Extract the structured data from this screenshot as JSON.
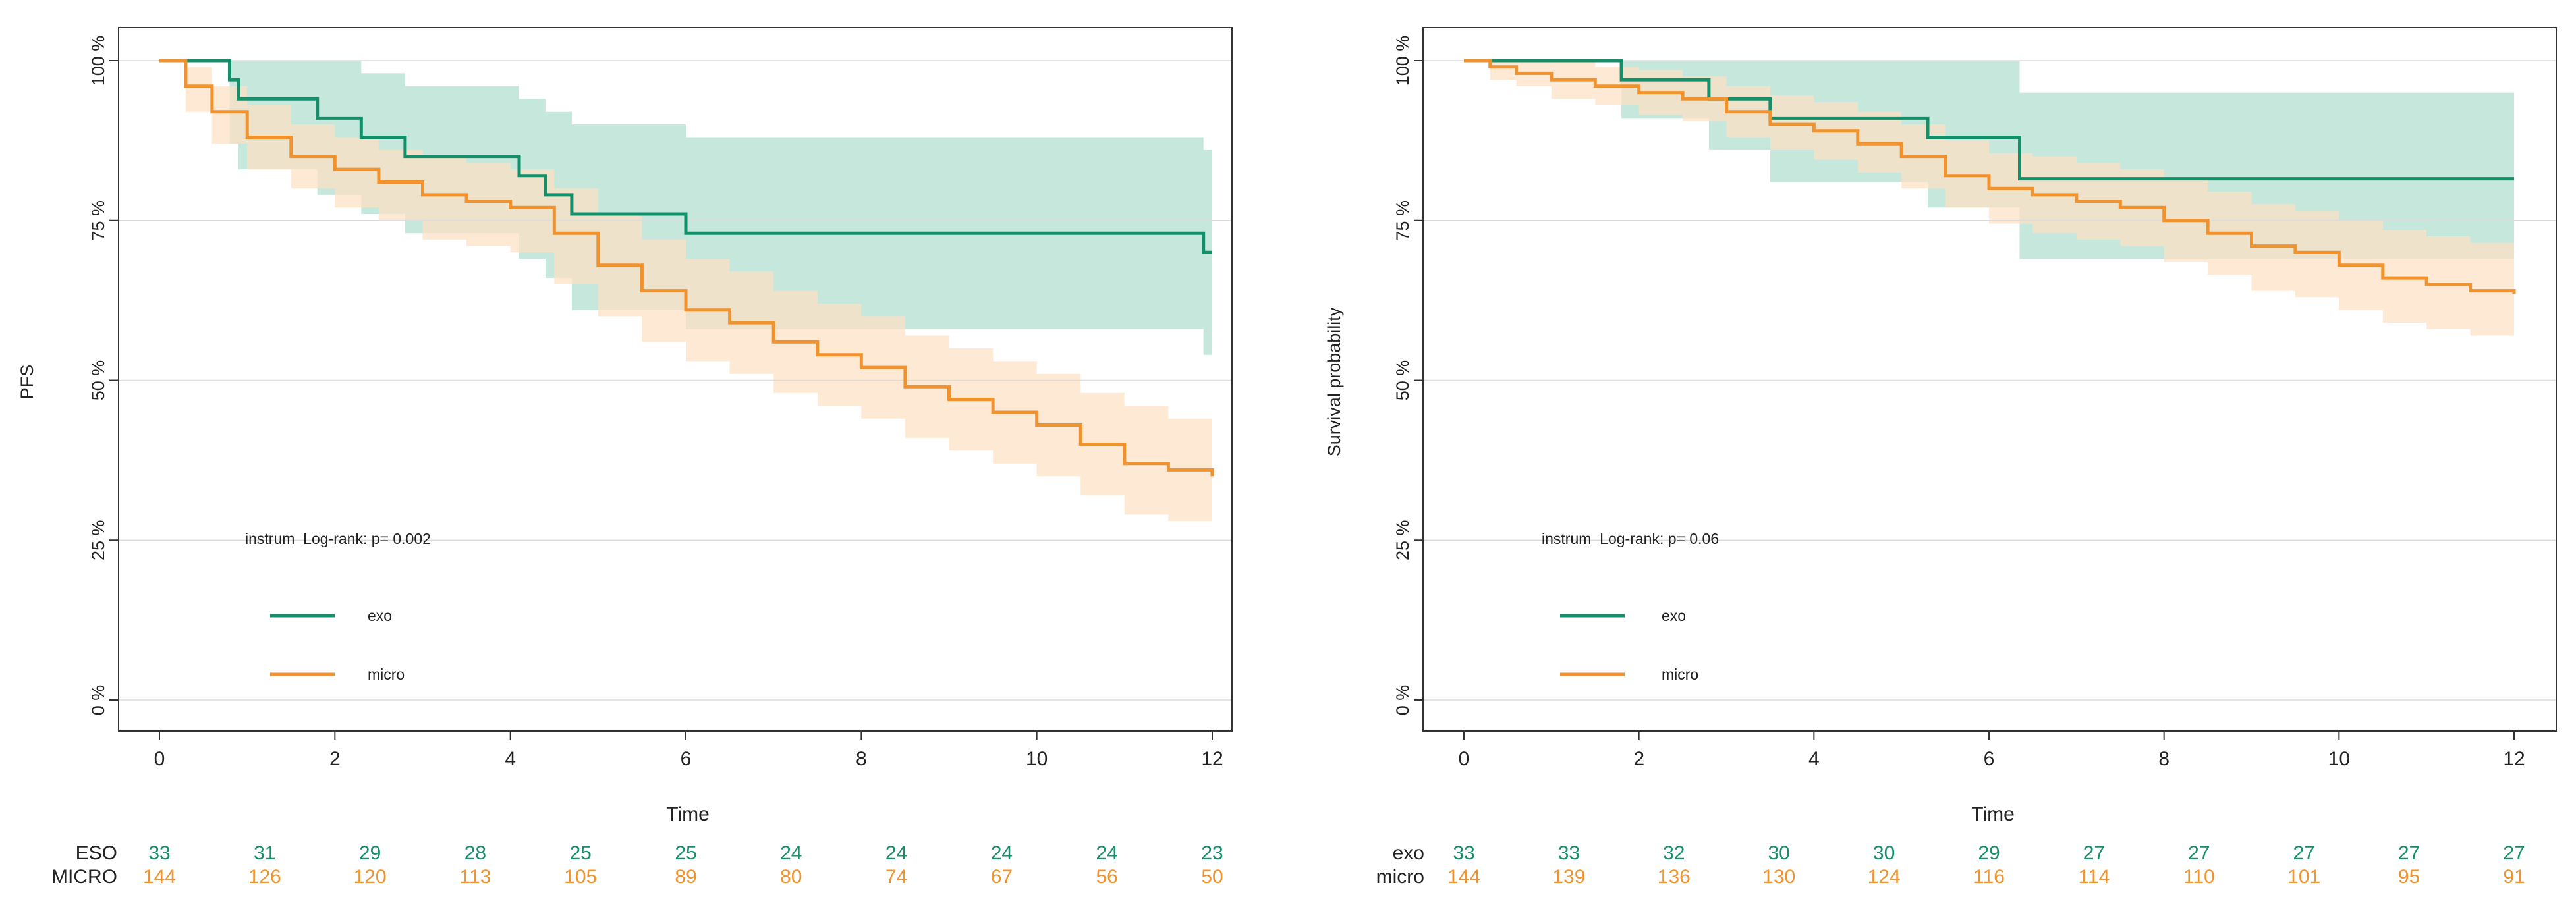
{
  "colors": {
    "exo": "#148f6a",
    "micro": "#f0922e",
    "exo_band": "#b8e2d3",
    "micro_band": "#fde0c3",
    "grid": "#dcdcdc",
    "axis": "#333333"
  },
  "chart_data": [
    {
      "type": "line",
      "subtype": "kaplan-meier",
      "title": "",
      "xlabel": "Time",
      "ylabel": "PFS",
      "xlim": [
        0,
        12
      ],
      "ylim": [
        0,
        100
      ],
      "x_ticks": [
        "0",
        "2",
        "4",
        "6",
        "8",
        "10",
        "12"
      ],
      "y_ticks": [
        "0 %",
        "25 %",
        "50 %",
        "75 %",
        "100 %"
      ],
      "grid": true,
      "annotation": "instrum  Log-rank: p= 0.002",
      "legend": [
        "exo",
        "micro"
      ],
      "legend_position": "lower-left",
      "series": [
        {
          "name": "exo",
          "steps": [
            [
              0,
              100
            ],
            [
              0.8,
              97
            ],
            [
              0.9,
              94
            ],
            [
              1.8,
              91
            ],
            [
              2.3,
              88
            ],
            [
              2.8,
              85
            ],
            [
              4.1,
              82
            ],
            [
              4.4,
              79
            ],
            [
              4.7,
              76
            ],
            [
              6.0,
              73
            ],
            [
              11.9,
              70
            ],
            [
              12,
              70
            ]
          ],
          "lower": [
            [
              0,
              100
            ],
            [
              0.8,
              87
            ],
            [
              0.9,
              83
            ],
            [
              1.8,
              79
            ],
            [
              2.3,
              76
            ],
            [
              2.8,
              73
            ],
            [
              4.1,
              69
            ],
            [
              4.4,
              66
            ],
            [
              4.7,
              61
            ],
            [
              6.0,
              58
            ],
            [
              11.9,
              54
            ],
            [
              12,
              54
            ]
          ],
          "upper": [
            [
              0,
              100
            ],
            [
              0.8,
              100
            ],
            [
              1.8,
              100
            ],
            [
              2.3,
              98
            ],
            [
              2.8,
              96
            ],
            [
              4.1,
              94
            ],
            [
              4.4,
              92
            ],
            [
              4.7,
              90
            ],
            [
              6.0,
              88
            ],
            [
              11.9,
              86
            ],
            [
              12,
              86
            ]
          ]
        },
        {
          "name": "micro",
          "steps": [
            [
              0,
              100
            ],
            [
              0.3,
              96
            ],
            [
              0.6,
              92
            ],
            [
              1,
              88
            ],
            [
              1.5,
              85
            ],
            [
              2,
              83
            ],
            [
              2.5,
              81
            ],
            [
              3,
              79
            ],
            [
              3.5,
              78
            ],
            [
              4,
              77
            ],
            [
              4.5,
              73
            ],
            [
              5,
              68
            ],
            [
              5.5,
              64
            ],
            [
              6,
              61
            ],
            [
              6.5,
              59
            ],
            [
              7,
              56
            ],
            [
              7.5,
              54
            ],
            [
              8,
              52
            ],
            [
              8.5,
              49
            ],
            [
              9,
              47
            ],
            [
              9.5,
              45
            ],
            [
              10,
              43
            ],
            [
              10.5,
              40
            ],
            [
              11,
              37
            ],
            [
              11.5,
              36
            ],
            [
              12,
              35
            ]
          ],
          "lower": [
            [
              0,
              100
            ],
            [
              0.3,
              92
            ],
            [
              0.6,
              87
            ],
            [
              1,
              83
            ],
            [
              1.5,
              80
            ],
            [
              2,
              77
            ],
            [
              2.5,
              75
            ],
            [
              3,
              72
            ],
            [
              3.5,
              71
            ],
            [
              4,
              70
            ],
            [
              4.5,
              65
            ],
            [
              5,
              60
            ],
            [
              5.5,
              56
            ],
            [
              6,
              53
            ],
            [
              6.5,
              51
            ],
            [
              7,
              48
            ],
            [
              7.5,
              46
            ],
            [
              8,
              44
            ],
            [
              8.5,
              41
            ],
            [
              9,
              39
            ],
            [
              9.5,
              37
            ],
            [
              10,
              35
            ],
            [
              10.5,
              32
            ],
            [
              11,
              29
            ],
            [
              11.5,
              28
            ],
            [
              12,
              27
            ]
          ],
          "upper": [
            [
              0,
              100
            ],
            [
              0.3,
              99
            ],
            [
              0.6,
              96
            ],
            [
              1,
              93
            ],
            [
              1.5,
              90
            ],
            [
              2,
              88
            ],
            [
              2.5,
              86
            ],
            [
              3,
              85
            ],
            [
              3.5,
              84
            ],
            [
              4,
              83
            ],
            [
              4.5,
              80
            ],
            [
              5,
              76
            ],
            [
              5.5,
              72
            ],
            [
              6,
              69
            ],
            [
              6.5,
              67
            ],
            [
              7,
              64
            ],
            [
              7.5,
              62
            ],
            [
              8,
              60
            ],
            [
              8.5,
              57
            ],
            [
              9,
              55
            ],
            [
              9.5,
              53
            ],
            [
              10,
              51
            ],
            [
              10.5,
              48
            ],
            [
              11,
              46
            ],
            [
              11.5,
              44
            ],
            [
              12,
              43
            ]
          ]
        }
      ],
      "risk_table": {
        "times": [
          0,
          1.2,
          2.4,
          3.6,
          4.8,
          6.0,
          7.2,
          8.4,
          9.6,
          10.8,
          12
        ],
        "rows": [
          {
            "label": "ESO",
            "group": "exo",
            "values": [
              "33",
              "31",
              "29",
              "28",
              "25",
              "25",
              "24",
              "24",
              "24",
              "24",
              "23"
            ]
          },
          {
            "label": "MICRO",
            "group": "micro",
            "values": [
              "144",
              "126",
              "120",
              "113",
              "105",
              "89",
              "80",
              "74",
              "67",
              "56",
              "50"
            ]
          }
        ]
      }
    },
    {
      "type": "line",
      "subtype": "kaplan-meier",
      "title": "",
      "xlabel": "Time",
      "ylabel": "Survival probability",
      "xlim": [
        0,
        12
      ],
      "ylim": [
        0,
        100
      ],
      "x_ticks": [
        "0",
        "2",
        "4",
        "6",
        "8",
        "10",
        "12"
      ],
      "y_ticks": [
        "0 %",
        "25 %",
        "50 %",
        "75 %",
        "100 %"
      ],
      "grid": true,
      "annotation": "instrum  Log-rank: p= 0.06",
      "legend": [
        "exo",
        "micro"
      ],
      "legend_position": "lower-left",
      "series": [
        {
          "name": "exo",
          "steps": [
            [
              0,
              100
            ],
            [
              1.8,
              97
            ],
            [
              2.8,
              94
            ],
            [
              3.5,
              91
            ],
            [
              5.3,
              88
            ],
            [
              6.35,
              81.5
            ],
            [
              12,
              81.5
            ]
          ],
          "lower": [
            [
              0,
              100
            ],
            [
              1.8,
              91
            ],
            [
              2.8,
              86
            ],
            [
              3.5,
              81
            ],
            [
              5.3,
              77
            ],
            [
              6.35,
              69
            ],
            [
              12,
              69
            ]
          ],
          "upper": [
            [
              0,
              100
            ],
            [
              5.3,
              100
            ],
            [
              6.35,
              95
            ],
            [
              12,
              95
            ]
          ]
        },
        {
          "name": "micro",
          "steps": [
            [
              0,
              100
            ],
            [
              0.3,
              99
            ],
            [
              0.6,
              98
            ],
            [
              1,
              97
            ],
            [
              1.5,
              96
            ],
            [
              2,
              95
            ],
            [
              2.5,
              94
            ],
            [
              3,
              92
            ],
            [
              3.5,
              90
            ],
            [
              4,
              89
            ],
            [
              4.5,
              87
            ],
            [
              5,
              85
            ],
            [
              5.5,
              82
            ],
            [
              6,
              80
            ],
            [
              6.5,
              79
            ],
            [
              7,
              78
            ],
            [
              7.5,
              77
            ],
            [
              8,
              75
            ],
            [
              8.5,
              73
            ],
            [
              9,
              71
            ],
            [
              9.5,
              70
            ],
            [
              10,
              68
            ],
            [
              10.5,
              66
            ],
            [
              11,
              65
            ],
            [
              11.5,
              64
            ],
            [
              12,
              63.5
            ]
          ],
          "lower": [
            [
              0,
              100
            ],
            [
              0.3,
              97
            ],
            [
              0.6,
              96
            ],
            [
              1,
              94
            ],
            [
              1.5,
              93
            ],
            [
              2,
              91.5
            ],
            [
              2.5,
              90.5
            ],
            [
              3,
              88
            ],
            [
              3.5,
              86
            ],
            [
              4,
              84.5
            ],
            [
              4.5,
              82.5
            ],
            [
              5,
              80
            ],
            [
              5.5,
              77
            ],
            [
              6,
              74.5
            ],
            [
              6.5,
              73
            ],
            [
              7,
              72
            ],
            [
              7.5,
              71
            ],
            [
              8,
              68.5
            ],
            [
              8.5,
              66.5
            ],
            [
              9,
              64
            ],
            [
              9.5,
              63
            ],
            [
              10,
              61
            ],
            [
              10.5,
              59
            ],
            [
              11,
              58
            ],
            [
              11.5,
              57
            ],
            [
              12,
              56
            ]
          ],
          "upper": [
            [
              0,
              100
            ],
            [
              1.5,
              99
            ],
            [
              2,
              98.5
            ],
            [
              2.5,
              97.5
            ],
            [
              3,
              96
            ],
            [
              3.5,
              94.5
            ],
            [
              4,
              93.5
            ],
            [
              4.5,
              92
            ],
            [
              5,
              90
            ],
            [
              5.5,
              87.5
            ],
            [
              6,
              85.5
            ],
            [
              6.5,
              85
            ],
            [
              7,
              84
            ],
            [
              7.5,
              83
            ],
            [
              8,
              81.5
            ],
            [
              8.5,
              79.5
            ],
            [
              9,
              77.5
            ],
            [
              9.5,
              76.5
            ],
            [
              10,
              75
            ],
            [
              10.5,
              73.5
            ],
            [
              11,
              72.5
            ],
            [
              11.5,
              71.5
            ],
            [
              12,
              71
            ]
          ]
        }
      ],
      "risk_table": {
        "times": [
          0,
          1.2,
          2.4,
          3.6,
          4.8,
          6.0,
          7.2,
          8.4,
          9.6,
          10.8,
          12
        ],
        "rows": [
          {
            "label": "exo",
            "group": "exo",
            "values": [
              "33",
              "33",
              "32",
              "30",
              "30",
              "29",
              "27",
              "27",
              "27",
              "27",
              "27"
            ]
          },
          {
            "label": "micro",
            "group": "micro",
            "values": [
              "144",
              "139",
              "136",
              "130",
              "124",
              "116",
              "114",
              "110",
              "101",
              "95",
              "91"
            ]
          }
        ]
      }
    }
  ]
}
